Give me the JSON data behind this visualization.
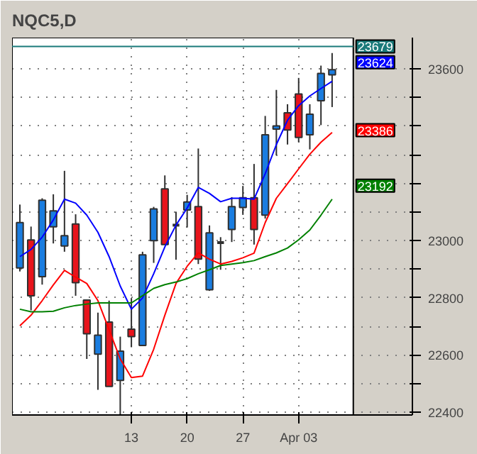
{
  "chart_data": {
    "type": "candlestick",
    "title": "NQC5,D",
    "categories": [
      null,
      null,
      null,
      null,
      null,
      null,
      null,
      null,
      null,
      null,
      "13",
      null,
      null,
      null,
      null,
      "20",
      null,
      null,
      null,
      null,
      "27",
      null,
      null,
      null,
      null,
      "Apr 03",
      null,
      null,
      null
    ],
    "ohlc": [
      [
        22904,
        23126,
        22892,
        23063
      ],
      [
        23002,
        23049,
        22756,
        22807
      ],
      [
        22874,
        23148,
        22846,
        23141
      ],
      [
        23048,
        23162,
        22990,
        23104
      ],
      [
        22981,
        23244,
        22961,
        23017
      ],
      [
        23058,
        23092,
        22807,
        22853
      ],
      [
        22792,
        22792,
        22586,
        22674
      ],
      [
        22603,
        22748,
        22478,
        22669
      ],
      [
        22715,
        22790,
        22490,
        22490
      ],
      [
        22511,
        22664,
        22386,
        22613
      ],
      [
        22690,
        22799,
        22627,
        22664
      ],
      [
        22633,
        22961,
        22633,
        22950
      ],
      [
        23000,
        23118,
        22922,
        23111
      ],
      [
        23181,
        23228,
        22986,
        22986
      ],
      [
        23054,
        23101,
        22933,
        23054
      ],
      [
        23107,
        23160,
        23046,
        23135
      ],
      [
        23119,
        23322,
        22918,
        22935
      ],
      [
        22828,
        23053,
        22824,
        23027
      ],
      [
        22993,
        23012,
        22898,
        22993
      ],
      [
        23039,
        23152,
        22995,
        23119
      ],
      [
        23116,
        23191,
        23090,
        23150
      ],
      [
        23150,
        23268,
        22986,
        23039
      ],
      [
        23089,
        23436,
        23077,
        23370
      ],
      [
        23390,
        23527,
        23298,
        23401
      ],
      [
        23447,
        23477,
        23336,
        23387
      ],
      [
        23513,
        23569,
        23344,
        23361
      ],
      [
        23370,
        23477,
        23319,
        23442
      ],
      [
        23489,
        23612,
        23404,
        23585
      ],
      [
        23580,
        23656,
        23467,
        23598
      ]
    ],
    "colors": [
      "#1a7de0",
      "#e8141c",
      "#1a7de0",
      "#1a7de0",
      "#1a7de0",
      "#e8141c",
      "#e8141c",
      "#1a7de0",
      "#e8141c",
      "#1a7de0",
      "#e8141c",
      "#1a7de0",
      "#1a7de0",
      "#e8141c",
      "#303030",
      "#1a7de0",
      "#e8141c",
      "#1a7de0",
      "#303030",
      "#1a7de0",
      "#1a7de0",
      "#e8141c",
      "#1a7de0",
      "#1a7de0",
      "#e8141c",
      "#e8141c",
      "#1a7de0",
      "#1a7de0",
      "#1a7de0"
    ],
    "series": [
      {
        "type": "line",
        "color": "#0000ff",
        "values": [
          22944,
          22969,
          23012,
          23072,
          23145,
          23131,
          23089,
          23029,
          22944,
          22841,
          22760,
          22799,
          22884,
          22978,
          23054,
          23114,
          23186,
          23165,
          23136,
          23148,
          23148,
          23145,
          23234,
          23336,
          23421,
          23472,
          23506,
          23532,
          23557
        ]
      },
      {
        "type": "line",
        "color": "#ff0000",
        "values": [
          22702,
          22739,
          22790,
          22845,
          22896,
          22872,
          22850,
          22790,
          22688,
          22586,
          22521,
          22526,
          22620,
          22739,
          22850,
          22910,
          22957,
          22935,
          22918,
          22927,
          22940,
          22956,
          23063,
          23148,
          23199,
          23251,
          23302,
          23344,
          23378
        ]
      },
      {
        "type": "line",
        "color": "#008000",
        "values": [
          22760,
          22751,
          22751,
          22753,
          22765,
          22773,
          22778,
          22782,
          22782,
          22782,
          22782,
          22807,
          22833,
          22846,
          22855,
          22867,
          22884,
          22898,
          22913,
          22918,
          22923,
          22930,
          22944,
          22957,
          22974,
          23003,
          23037,
          23089,
          23145
        ]
      }
    ],
    "ylim": [
      22390,
      23710
    ],
    "yticks": [
      22400,
      {
        "value": 22500,
        "label": null
      },
      22600,
      {
        "value": 22700,
        "label": null
      },
      22800,
      {
        "value": 22900,
        "label": null
      },
      23000,
      {
        "value": 23100,
        "label": null
      },
      {
        "value": 23200,
        "label": null
      },
      {
        "value": 23300,
        "label": null
      },
      {
        "value": 23400,
        "label": null
      },
      {
        "value": 23500,
        "label": null
      },
      23600
    ],
    "ref_lines": [
      {
        "axis": "y",
        "value": 23679,
        "label": "23679",
        "color": "#1a7a7a"
      }
    ],
    "annotations": [
      {
        "text": "23624",
        "y": 23624
      },
      {
        "text": "23386",
        "y": 23386
      },
      {
        "text": "23192",
        "y": 23192
      }
    ],
    "grid": true
  }
}
